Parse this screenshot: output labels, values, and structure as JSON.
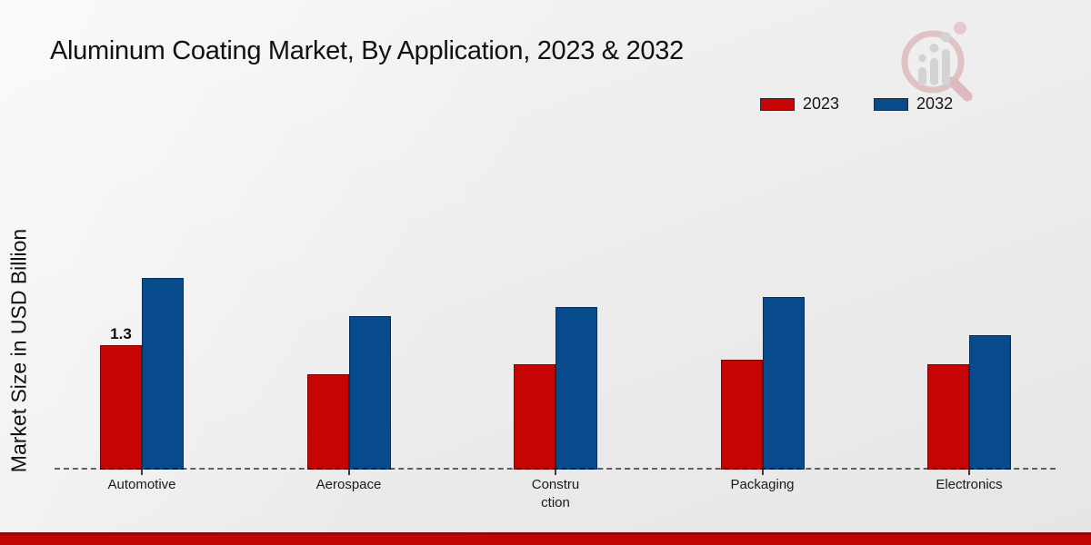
{
  "title": "Aluminum Coating Market, By Application, 2023 & 2032",
  "ylabel": "Market Size in USD Billion",
  "legend": {
    "items": [
      {
        "label": "2023",
        "color": "#c60404"
      },
      {
        "label": "2032",
        "color": "#074b8d"
      }
    ]
  },
  "icons": {
    "watermark": "magnifier-bar-chart-watermark"
  },
  "colors": {
    "series_2023": "#c60404",
    "series_2032": "#074b8d",
    "footer_band": "#c20404",
    "footer_band_edge": "#8e0b0b",
    "baseline_dash": "#3a3a3a",
    "background": "#ececec"
  },
  "chart_data": {
    "type": "bar",
    "title": "Aluminum Coating Market, By Application, 2023 & 2032",
    "xlabel": "",
    "ylabel": "Market Size in USD Billion",
    "categories": [
      "Automotive",
      "Aerospace",
      "Construction",
      "Packaging",
      "Electronics"
    ],
    "category_display": [
      "Automotive",
      "Aerospace",
      "Constru\nction",
      "Packaging",
      "Electronics"
    ],
    "series": [
      {
        "name": "2023",
        "color": "#c60404",
        "values": [
          1.3,
          1.0,
          1.1,
          1.15,
          1.1
        ]
      },
      {
        "name": "2032",
        "color": "#074b8d",
        "values": [
          2.0,
          1.6,
          1.7,
          1.8,
          1.4
        ]
      }
    ],
    "annotations": [
      {
        "category_index": 0,
        "series_index": 0,
        "text": "1.3"
      }
    ],
    "ylim": [
      0,
      3.5
    ],
    "grid": false,
    "axis_visible": false,
    "baseline_style": "dashed",
    "legend_position": "top-right"
  }
}
